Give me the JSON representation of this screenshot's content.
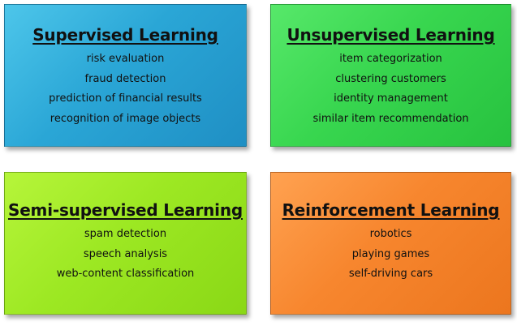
{
  "cards": [
    {
      "title": "Supervised Learning",
      "items": [
        "risk evaluation",
        "fraud detection",
        "prediction of financial results",
        "recognition of image objects"
      ]
    },
    {
      "title": "Unsupervised Learning",
      "items": [
        "item categorization",
        "clustering customers",
        "identity management",
        "similar item recommendation"
      ]
    },
    {
      "title": "Semi-supervised Learning",
      "items": [
        "spam detection",
        "speech analysis",
        "web-content classification"
      ]
    },
    {
      "title": "Reinforcement Learning",
      "items": [
        "robotics",
        "playing games",
        "self-driving cars"
      ]
    }
  ],
  "colors": {
    "supervised": "#2aa6d6",
    "unsupervised": "#38d64f",
    "semi_supervised": "#9de823",
    "reinforcement": "#f7862e"
  }
}
